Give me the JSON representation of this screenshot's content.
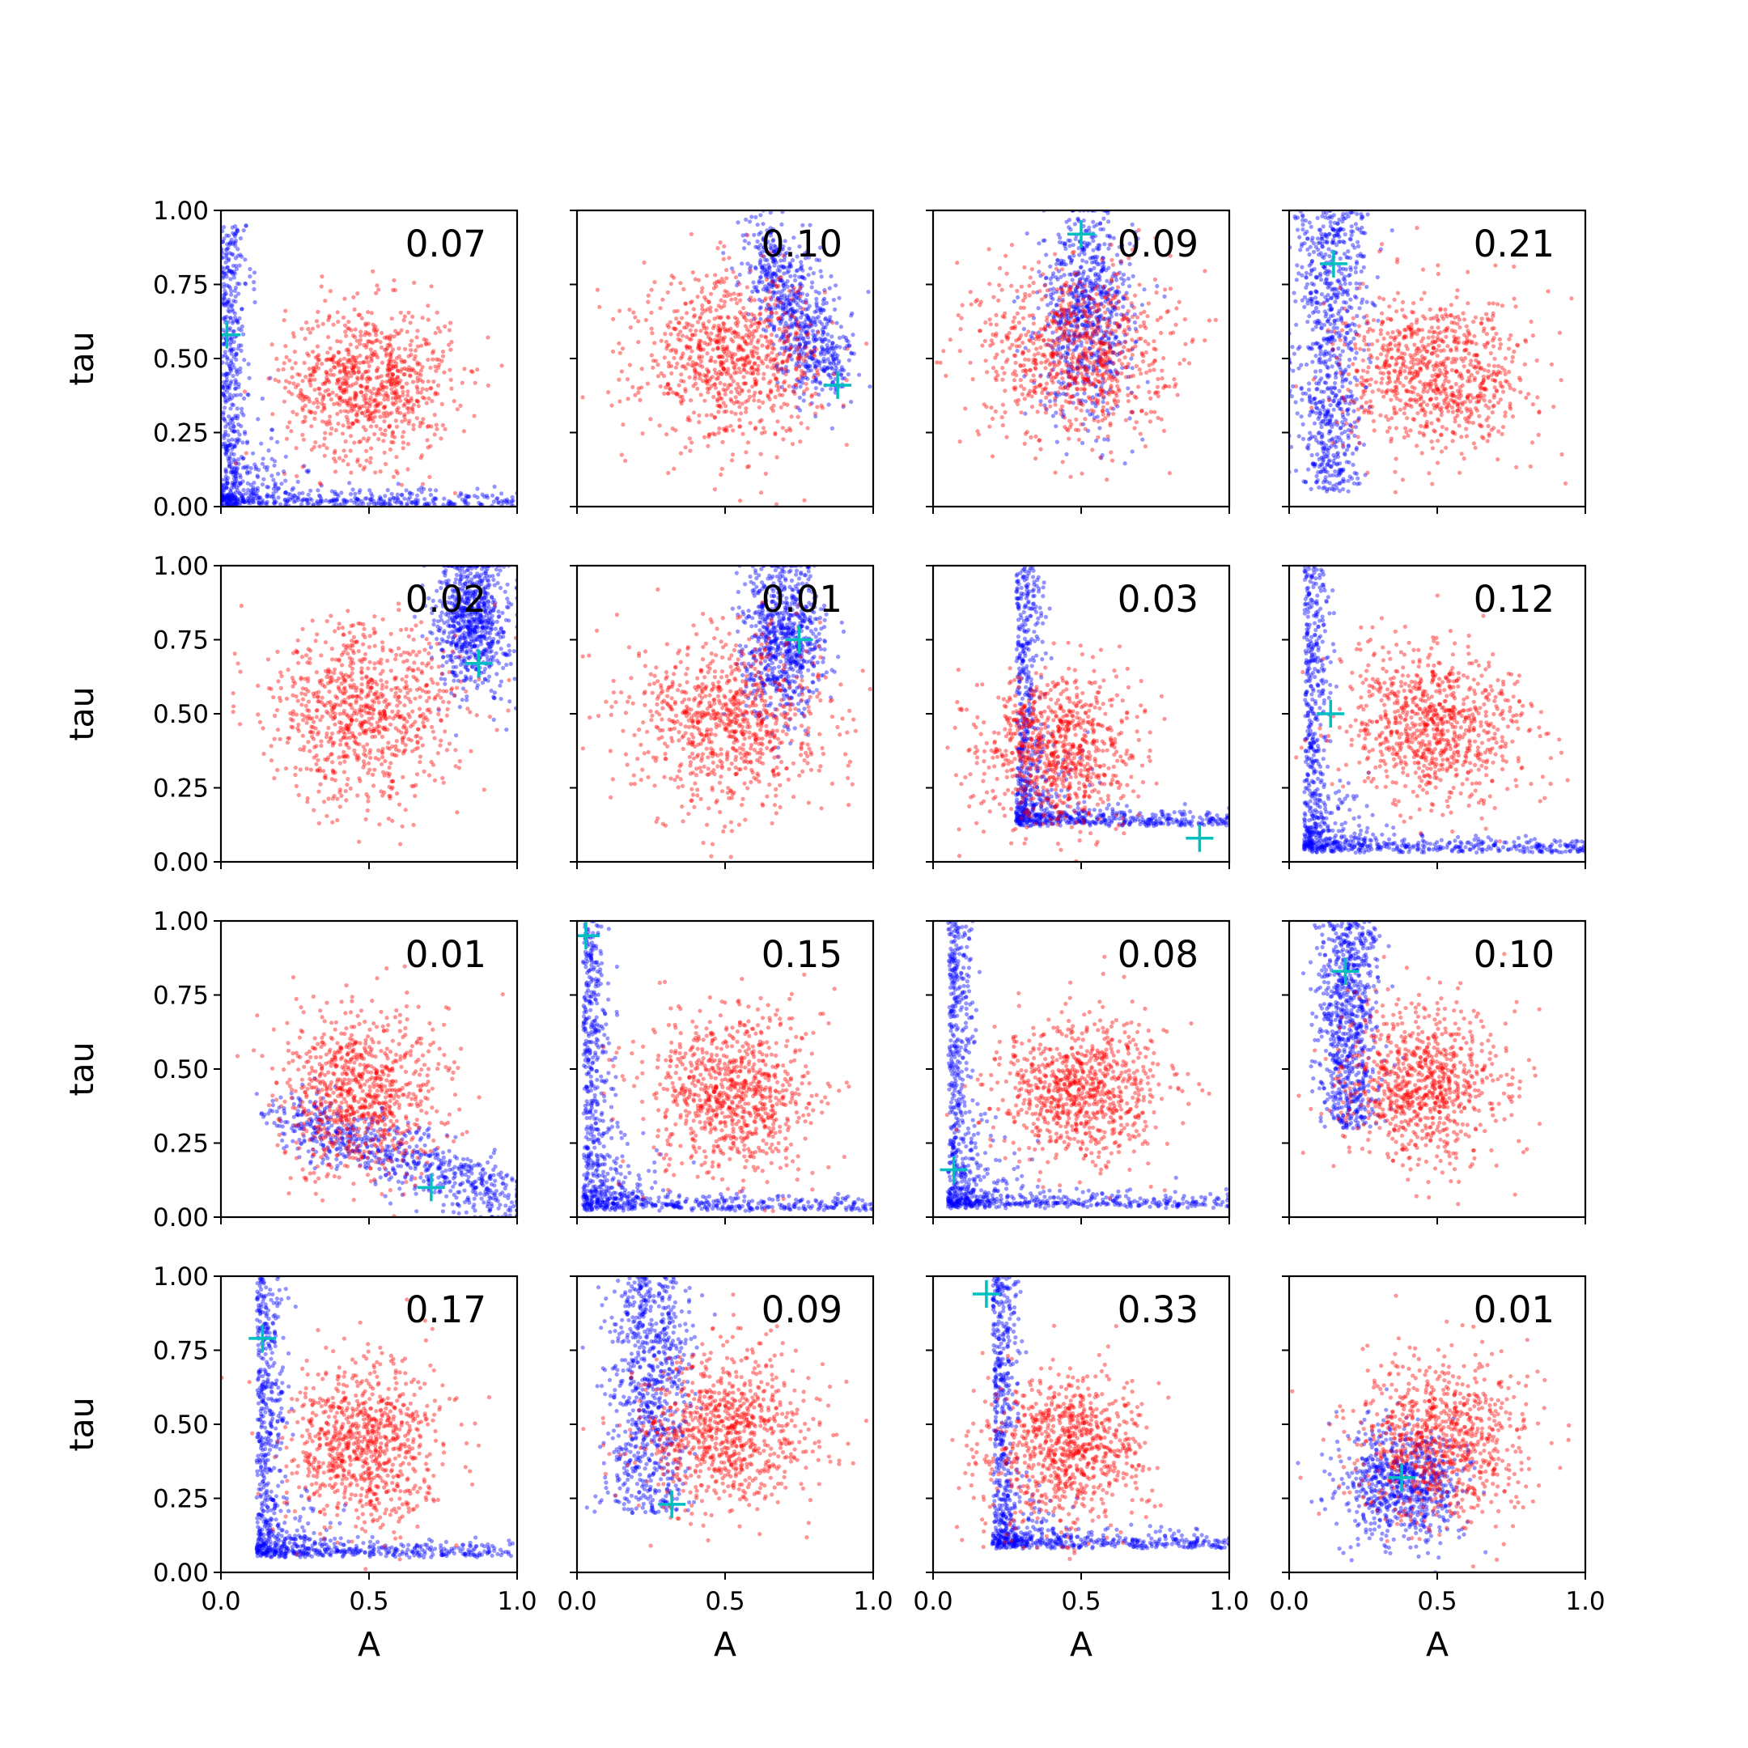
{
  "chart_data": {
    "type": "scatter",
    "grid": "4x4",
    "xlabel": "A",
    "ylabel": "tau",
    "xlim": [
      0,
      1
    ],
    "ylim": [
      0,
      1
    ],
    "x_ticks": [
      "0.0",
      "0.5",
      "1.0"
    ],
    "y_ticks": [
      "0.00",
      "0.25",
      "0.50",
      "0.75",
      "1.00"
    ],
    "grid_lines": false,
    "legend": "none",
    "colors": {
      "series_a": "#ff0000",
      "series_b": "#0000ff",
      "marker": "#00bfbf"
    },
    "panels": [
      {
        "label": "0.07",
        "red": {
          "mean": [
            0.5,
            0.42
          ],
          "spread": [
            0.14,
            0.13
          ]
        },
        "blue": {
          "shape": "L",
          "corner": [
            0.0,
            0.0
          ],
          "arm_end": [
            1.0,
            0.95
          ]
        },
        "marker": [
          0.02,
          0.58
        ]
      },
      {
        "label": "0.10",
        "red": {
          "mean": [
            0.52,
            0.5
          ],
          "spread": [
            0.15,
            0.14
          ]
        },
        "blue": {
          "shape": "diag",
          "from": [
            0.62,
            0.9
          ],
          "to": [
            0.85,
            0.42
          ],
          "width": 0.06
        },
        "marker": [
          0.88,
          0.41
        ]
      },
      {
        "label": "0.09",
        "red": {
          "mean": [
            0.48,
            0.52
          ],
          "spread": [
            0.16,
            0.15
          ]
        },
        "blue": {
          "shape": "blob",
          "center": [
            0.52,
            0.65
          ],
          "spread": [
            0.08,
            0.17
          ]
        },
        "marker": [
          0.5,
          0.92
        ]
      },
      {
        "label": "0.21",
        "red": {
          "mean": [
            0.5,
            0.45
          ],
          "spread": [
            0.16,
            0.13
          ]
        },
        "blue": {
          "shape": "vert",
          "x": 0.14,
          "xspread": 0.06,
          "y_range": [
            0.05,
            1.0
          ]
        },
        "marker": [
          0.15,
          0.82
        ]
      },
      {
        "label": "0.02",
        "red": {
          "mean": [
            0.48,
            0.5
          ],
          "spread": [
            0.16,
            0.15
          ]
        },
        "blue": {
          "shape": "blob",
          "center": [
            0.85,
            0.82
          ],
          "spread": [
            0.06,
            0.12
          ]
        },
        "marker": [
          0.87,
          0.67
        ]
      },
      {
        "label": "0.01",
        "red": {
          "mean": [
            0.52,
            0.48
          ],
          "spread": [
            0.16,
            0.15
          ]
        },
        "blue": {
          "shape": "blob",
          "center": [
            0.7,
            0.75
          ],
          "spread": [
            0.07,
            0.13
          ]
        },
        "marker": [
          0.75,
          0.75
        ]
      },
      {
        "label": "0.03",
        "red": {
          "mean": [
            0.42,
            0.38
          ],
          "spread": [
            0.13,
            0.13
          ]
        },
        "blue": {
          "shape": "L",
          "corner": [
            0.28,
            0.12
          ],
          "arm_end": [
            1.0,
            1.0
          ]
        },
        "marker": [
          0.9,
          0.08
        ]
      },
      {
        "label": "0.12",
        "red": {
          "mean": [
            0.5,
            0.46
          ],
          "spread": [
            0.16,
            0.13
          ]
        },
        "blue": {
          "shape": "L",
          "corner": [
            0.05,
            0.03
          ],
          "arm_end": [
            1.0,
            1.0
          ]
        },
        "marker": [
          0.14,
          0.5
        ]
      },
      {
        "label": "0.01",
        "red": {
          "mean": [
            0.48,
            0.42
          ],
          "spread": [
            0.14,
            0.14
          ]
        },
        "blue": {
          "shape": "diag",
          "from": [
            0.2,
            0.35
          ],
          "to": [
            1.0,
            0.05
          ],
          "width": 0.05
        },
        "marker": [
          0.71,
          0.1
        ]
      },
      {
        "label": "0.15",
        "red": {
          "mean": [
            0.52,
            0.42
          ],
          "spread": [
            0.14,
            0.14
          ]
        },
        "blue": {
          "shape": "L",
          "corner": [
            0.02,
            0.02
          ],
          "arm_end": [
            1.0,
            1.0
          ]
        },
        "marker": [
          0.03,
          0.95
        ]
      },
      {
        "label": "0.08",
        "red": {
          "mean": [
            0.5,
            0.43
          ],
          "spread": [
            0.14,
            0.12
          ]
        },
        "blue": {
          "shape": "L",
          "corner": [
            0.05,
            0.03
          ],
          "arm_end": [
            1.0,
            1.0
          ]
        },
        "marker": [
          0.07,
          0.16
        ]
      },
      {
        "label": "0.10",
        "red": {
          "mean": [
            0.45,
            0.45
          ],
          "spread": [
            0.14,
            0.13
          ]
        },
        "blue": {
          "shape": "vert",
          "x": 0.2,
          "xspread": 0.05,
          "y_range": [
            0.3,
            1.0
          ]
        },
        "marker": [
          0.19,
          0.83
        ]
      },
      {
        "label": "0.17",
        "red": {
          "mean": [
            0.48,
            0.43
          ],
          "spread": [
            0.13,
            0.14
          ]
        },
        "blue": {
          "shape": "L",
          "corner": [
            0.12,
            0.05
          ],
          "arm_end": [
            1.0,
            1.0
          ]
        },
        "marker": [
          0.14,
          0.79
        ]
      },
      {
        "label": "0.09",
        "red": {
          "mean": [
            0.5,
            0.47
          ],
          "spread": [
            0.14,
            0.13
          ]
        },
        "blue": {
          "shape": "vert",
          "x": 0.24,
          "xspread": 0.07,
          "y_range": [
            0.2,
            1.0
          ]
        },
        "marker": [
          0.32,
          0.23
        ]
      },
      {
        "label": "0.33",
        "red": {
          "mean": [
            0.45,
            0.42
          ],
          "spread": [
            0.14,
            0.13
          ]
        },
        "blue": {
          "shape": "L",
          "corner": [
            0.2,
            0.08
          ],
          "arm_end": [
            1.0,
            1.0
          ]
        },
        "marker": [
          0.18,
          0.94
        ]
      },
      {
        "label": "0.01",
        "red": {
          "mean": [
            0.52,
            0.45
          ],
          "spread": [
            0.15,
            0.14
          ]
        },
        "blue": {
          "shape": "blob",
          "center": [
            0.38,
            0.3
          ],
          "spread": [
            0.1,
            0.1
          ]
        },
        "marker": [
          0.38,
          0.32
        ]
      }
    ]
  }
}
